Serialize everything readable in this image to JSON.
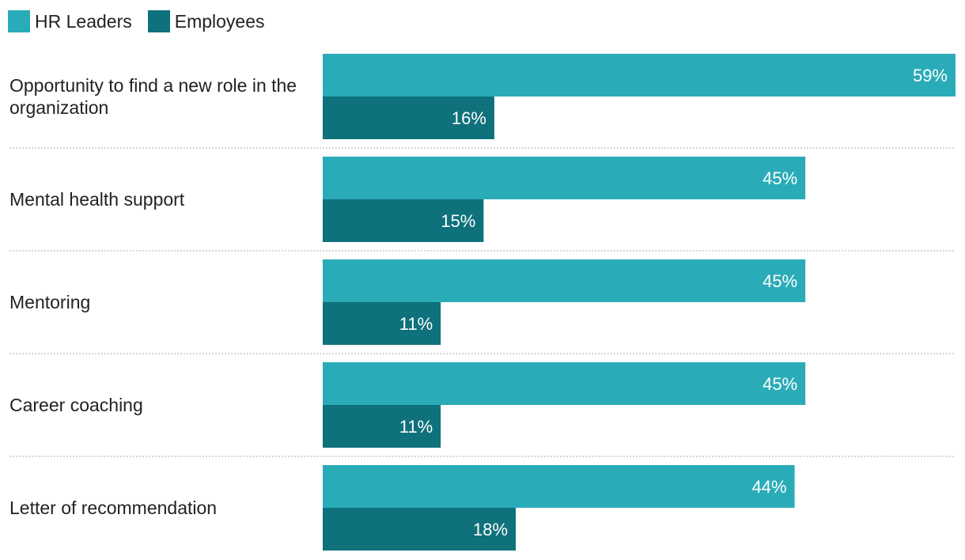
{
  "colors": {
    "hr_leaders": "#2aacb8",
    "employees": "#0e717b",
    "separator": "#c8c8c8",
    "label_text": "#222222",
    "value_text": "#ffffff"
  },
  "legend": {
    "position": "top-left",
    "items": [
      {
        "label": "HR Leaders",
        "color_key": "hr_leaders"
      },
      {
        "label": "Employees",
        "color_key": "employees"
      }
    ]
  },
  "chart_data": {
    "type": "bar",
    "orientation": "horizontal",
    "title": "",
    "xlabel": "",
    "ylabel": "",
    "xlim": [
      0,
      59
    ],
    "grid": false,
    "value_suffix": "%",
    "categories": [
      "Opportunity to find a new role in the organization",
      "Mental health support",
      "Mentoring",
      "Career coaching",
      "Letter of recommendation"
    ],
    "series": [
      {
        "name": "HR Leaders",
        "values": [
          59,
          45,
          45,
          45,
          44
        ]
      },
      {
        "name": "Employees",
        "values": [
          16,
          15,
          11,
          11,
          18
        ]
      }
    ]
  }
}
